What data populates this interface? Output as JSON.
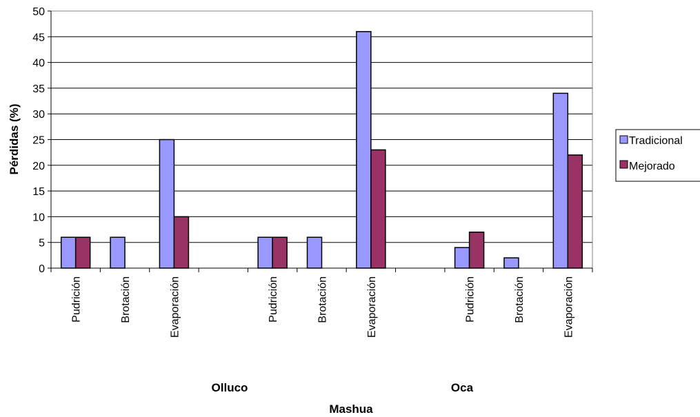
{
  "chart_data": {
    "type": "bar",
    "ylabel": "Pérdidas (%)",
    "ylim": [
      0,
      50
    ],
    "yticks": [
      0,
      5,
      10,
      15,
      20,
      25,
      30,
      35,
      40,
      45,
      50
    ],
    "grid": true,
    "legend_position": "right",
    "categories": [
      "Pudrición",
      "Brotación",
      "Evaporación",
      "",
      "Pudrición",
      "Brotación",
      "Evaporación",
      "",
      "Pudrición",
      "Brotación",
      "Evaporación"
    ],
    "group_labels": [
      "Olluco",
      "Oca"
    ],
    "xlabel": "Mashua",
    "series": [
      {
        "name": "Tradicional",
        "color": "#9999FF",
        "values": [
          6,
          6,
          25,
          null,
          6,
          6,
          46,
          null,
          4,
          2,
          34
        ]
      },
      {
        "name": "Mejorado",
        "color": "#993366",
        "values": [
          6,
          0,
          10,
          null,
          6,
          0,
          23,
          null,
          7,
          0,
          22
        ]
      }
    ]
  }
}
